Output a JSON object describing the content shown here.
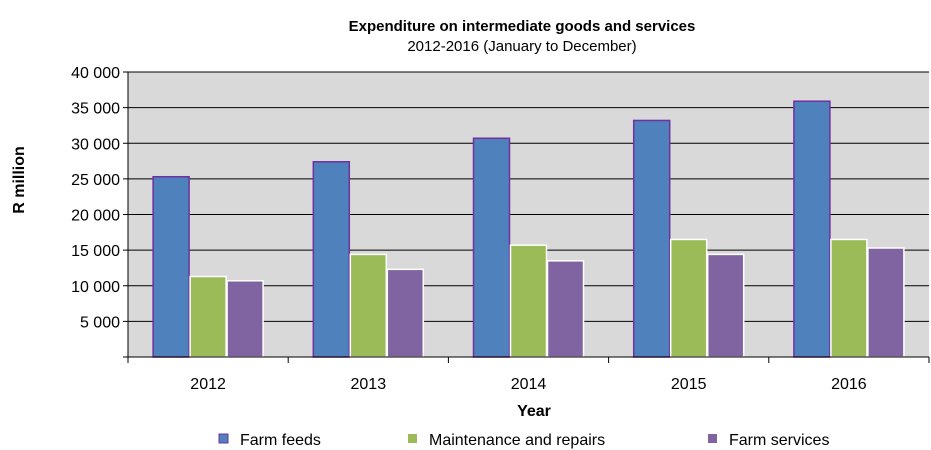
{
  "chart_data": {
    "type": "bar",
    "title": "Expenditure on  intermediate goods and services",
    "subtitle": "2012-2016  (January to December)",
    "xlabel": "Year",
    "ylabel": "R million",
    "categories": [
      "2012",
      "2013",
      "2014",
      "2015",
      "2016"
    ],
    "ylim": [
      0,
      40000
    ],
    "yticks": [
      {
        "value": 5000,
        "label": "5 000"
      },
      {
        "value": 10000,
        "label": "10 000"
      },
      {
        "value": 15000,
        "label": "15 000"
      },
      {
        "value": 20000,
        "label": "20 000"
      },
      {
        "value": 25000,
        "label": "25 000"
      },
      {
        "value": 30000,
        "label": "30 000"
      },
      {
        "value": 35000,
        "label": "35 000"
      },
      {
        "value": 40000,
        "label": "40 000"
      }
    ],
    "grid": true,
    "legend_position": "bottom",
    "plot_background": "#d9d9d9",
    "series": [
      {
        "name": "Farm feeds",
        "color": "#4f81bd",
        "border": "#7030a0",
        "values": [
          25300,
          27400,
          30700,
          33200,
          35900
        ]
      },
      {
        "name": "Maintenance and repairs",
        "color": "#9bbb59",
        "border": "#ffffff",
        "values": [
          11300,
          14400,
          15700,
          16500,
          16500
        ]
      },
      {
        "name": "Farm services",
        "color": "#8064a2",
        "border": "#ffffff",
        "values": [
          10700,
          12300,
          13500,
          14400,
          15300
        ]
      }
    ]
  }
}
